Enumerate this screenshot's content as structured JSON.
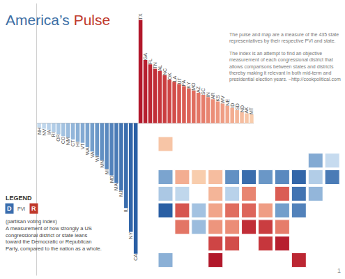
{
  "title": "America’s Pulse",
  "description": [
    [
      "The pulse and map are a measure of the 435 state",
      "representatives by their respective PVI and state."
    ],
    [
      "The index is an attempt to find an objective",
      "measurement of each congressional district that",
      "allows comparisons between states and districts",
      "thereby making it relevant in both mid-term and",
      "presidential election years. ~http://cookpolitical.com"
    ]
  ],
  "key": {
    "heading": "LEGEND",
    "left": "D",
    "middle": "PVI",
    "right": "R",
    "text": [
      "(partisan voting index)",
      "A measurement of how strongly a US",
      "congressional district or state leans",
      "toward the Democratic or Republican",
      "Party, compared to the nation as a whole."
    ]
  },
  "page_number": "1",
  "chart_data": [
    {
      "type": "bar",
      "categories": [
        "NH",
        "NV",
        "IA",
        "RI",
        "OR",
        "CO",
        "NM",
        "CT",
        "HI",
        "VT",
        "WA",
        "VA",
        "WI",
        "MN",
        "MI",
        "MD",
        "MA",
        "NJ",
        "IL",
        "NY",
        "CA",
        "TX",
        "GA",
        "FL",
        "TN",
        "AL",
        "NC",
        "OK",
        "LA",
        "UT",
        "PA",
        "KY",
        "MO",
        "AZ",
        "SC",
        "IN",
        "AR",
        "KS",
        "WV",
        "NE",
        "ID",
        "SD",
        "ND",
        "AK",
        "MT"
      ],
      "values": [
        -4,
        -5,
        -6,
        -8,
        -10,
        -12,
        -13,
        -15,
        -17,
        -18,
        -22,
        -26,
        -30,
        -34,
        -42,
        -48,
        -55,
        -62,
        -78,
        -100,
        -120,
        95,
        58,
        54,
        50,
        48,
        44,
        40,
        38,
        36,
        34,
        32,
        30,
        28,
        26,
        24,
        22,
        20,
        18,
        16,
        14,
        12,
        10,
        9,
        8
      ],
      "colors": [
        "#c6dbef",
        "#c0d7ec",
        "#b9d2ea",
        "#b2cde7",
        "#abc8e4",
        "#a3c2e1",
        "#9bbcdd",
        "#93b6da",
        "#8bb0d6",
        "#83aad3",
        "#7ba4cf",
        "#739ecb",
        "#6a97c7",
        "#6290c3",
        "#5a89bf",
        "#5282bb",
        "#4a7bb6",
        "#4274b2",
        "#3a6dad",
        "#3266a9",
        "#2a5fa4",
        "#b2182b",
        "#b71f2f",
        "#bc2733",
        "#c12e37",
        "#c6363c",
        "#ca3d40",
        "#ce4545",
        "#d24d4a",
        "#d6554f",
        "#da5d54",
        "#dd655a",
        "#e06d5f",
        "#e37565",
        "#e67d6b",
        "#e88571",
        "#eb8d77",
        "#ed957d",
        "#ef9d84",
        "#f1a58a",
        "#f3ad91",
        "#f4b598",
        "#f6bd9f",
        "#f7c5a6",
        "#f8cdad"
      ],
      "ylim": [
        -140,
        110
      ],
      "tick_labels": false
    },
    {
      "type": "map",
      "categories": [
        "NH",
        "NV",
        "IA",
        "RI",
        "OR",
        "CO",
        "NM",
        "CT",
        "HI",
        "VT",
        "WA",
        "VA",
        "WI",
        "MN",
        "MI",
        "MD",
        "MA",
        "NJ",
        "IL",
        "NY",
        "CA",
        "TX",
        "GA",
        "FL",
        "TN",
        "AL",
        "NC",
        "OK",
        "LA",
        "UT",
        "PA",
        "KY",
        "MO",
        "AZ",
        "SC",
        "IN",
        "AR",
        "KS",
        "WV",
        "NE",
        "ID",
        "SD",
        "ND",
        "AK",
        "MT"
      ],
      "colors": [
        "#c6dbef",
        "#c0d7ec",
        "#b9d2ea",
        "#b2cde7",
        "#abc8e4",
        "#a3c2e1",
        "#9bbcdd",
        "#93b6da",
        "#8bb0d6",
        "#83aad3",
        "#7ba4cf",
        "#739ecb",
        "#6a97c7",
        "#6290c3",
        "#5a89bf",
        "#5282bb",
        "#4a7bb6",
        "#4274b2",
        "#3a6dad",
        "#3266a9",
        "#2a5fa4",
        "#b2182b",
        "#b71f2f",
        "#bc2733",
        "#c12e37",
        "#c6363c",
        "#ca3d40",
        "#ce4545",
        "#d24d4a",
        "#d6554f",
        "#da5d54",
        "#dd655a",
        "#e06d5f",
        "#e37565",
        "#e67d6b",
        "#e88571",
        "#eb8d77",
        "#ed957d",
        "#ef9d84",
        "#f1a58a",
        "#f3ad91",
        "#f4b598",
        "#f6bd9f",
        "#f7c5a6",
        "#f8cdad"
      ]
    }
  ]
}
